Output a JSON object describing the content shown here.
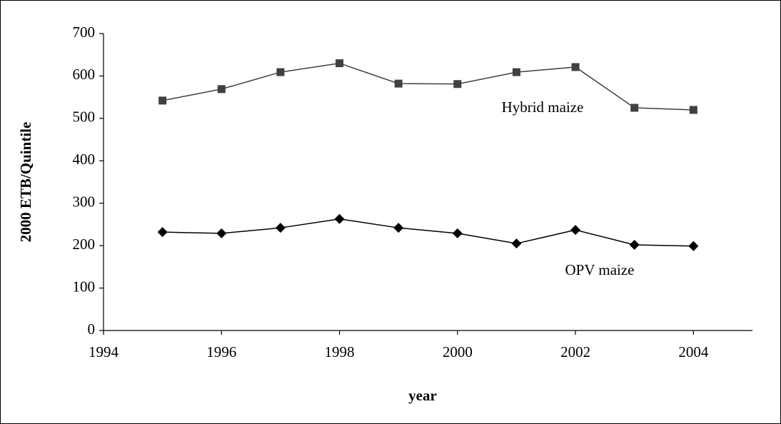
{
  "chart_data": {
    "type": "line",
    "x_label": "year",
    "y_label": "2000 ETB/Quintile",
    "x": [
      1995,
      1996,
      1997,
      1998,
      1999,
      2000,
      2001,
      2002,
      2003,
      2004
    ],
    "series": [
      {
        "name": "Hybrid maize",
        "color": "#404040",
        "marker": "square",
        "values": [
          542,
          569,
          609,
          630,
          582,
          581,
          609,
          621,
          525,
          520
        ]
      },
      {
        "name": "OPV maize",
        "color": "#000000",
        "marker": "diamond",
        "values": [
          232,
          229,
          242,
          263,
          242,
          229,
          205,
          237,
          202,
          199
        ]
      }
    ],
    "xlim": [
      1994,
      2005
    ],
    "xticks": [
      1994,
      1996,
      1998,
      2000,
      2002,
      2004
    ],
    "ylim": [
      0,
      700
    ],
    "yticks": [
      0,
      100,
      200,
      300,
      400,
      500,
      600,
      700
    ],
    "grid": false
  }
}
